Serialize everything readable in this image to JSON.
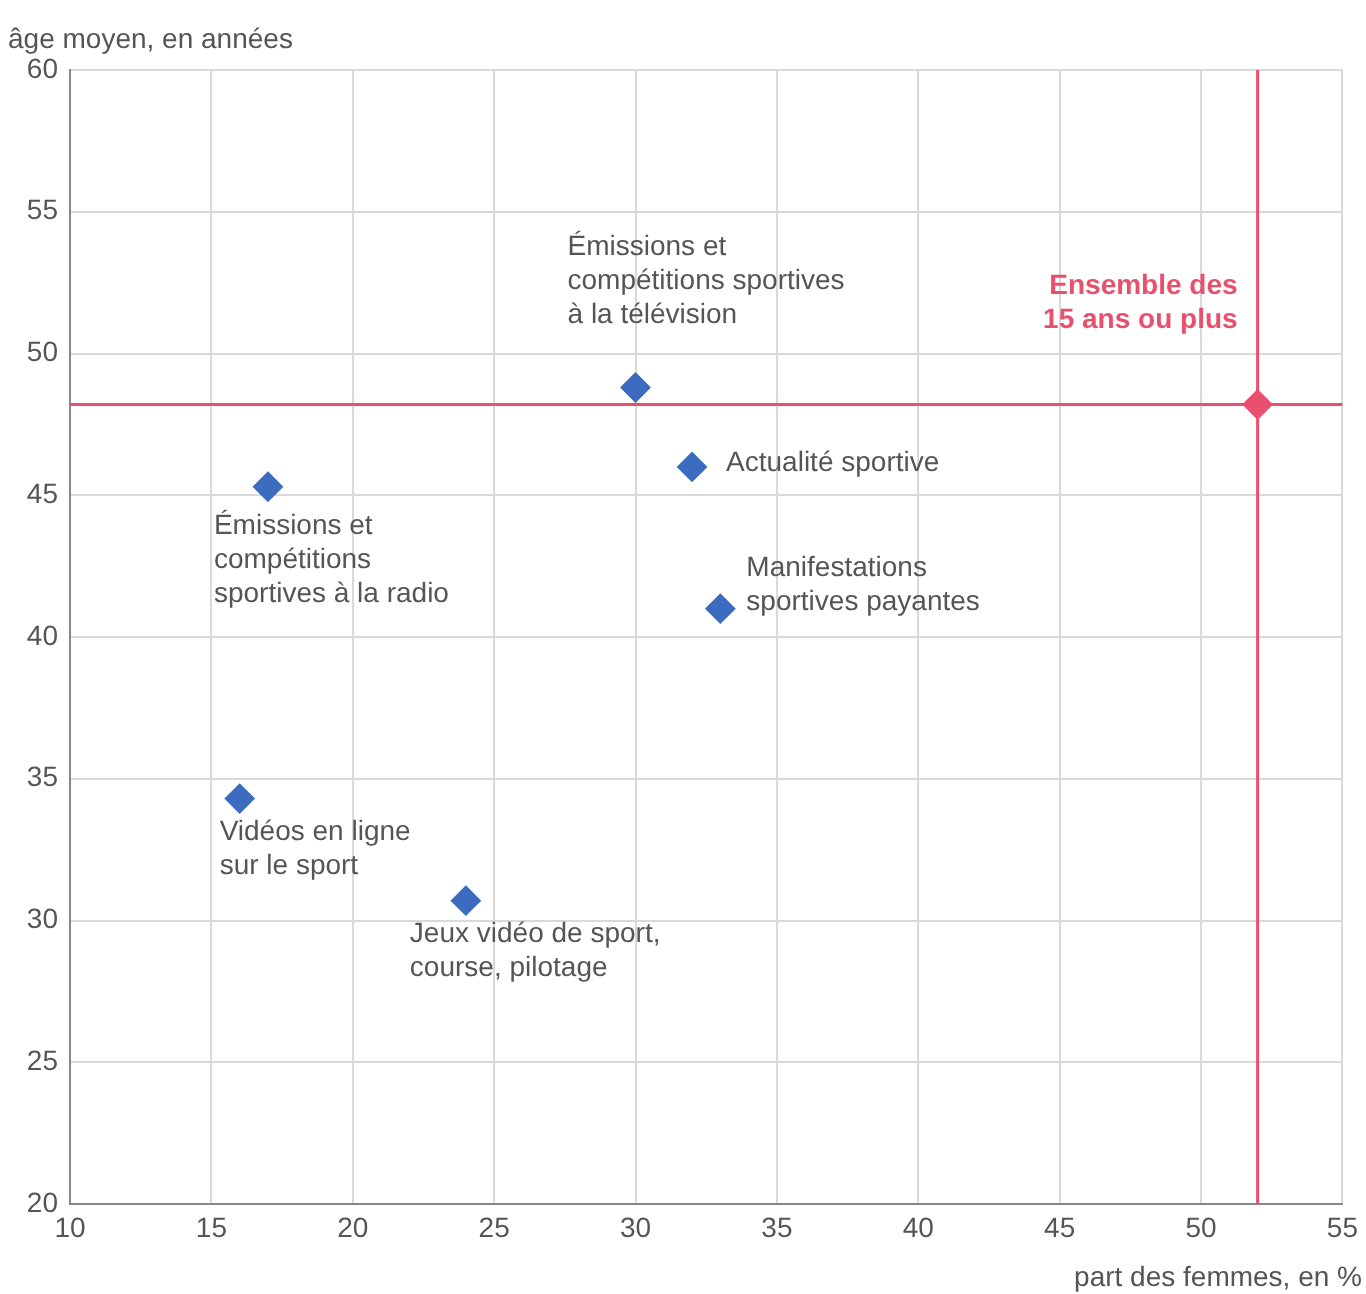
{
  "chart_data": {
    "type": "scatter",
    "xlabel": "part des femmes, en %",
    "ylabel": "âge moyen, en années",
    "xlim": [
      10,
      55
    ],
    "xticks": [
      10,
      15,
      20,
      25,
      30,
      35,
      40,
      45,
      50,
      55
    ],
    "ylim": [
      20,
      60
    ],
    "yticks": [
      20,
      25,
      30,
      35,
      40,
      45,
      50,
      55,
      60
    ],
    "grid": true,
    "marker": "diamond",
    "series": [
      {
        "color": "#3b6cbf",
        "x": [
          30,
          32,
          17,
          33,
          16,
          24
        ],
        "values": [
          48.8,
          46.0,
          45.3,
          41.0,
          34.3,
          30.7
        ]
      },
      {
        "name": "Ensemble des\n15 ans ou plus",
        "color": "#e8506e",
        "x": [
          52
        ],
        "values": [
          48.2
        ]
      }
    ],
    "ref_lines": [
      {
        "axis": "x",
        "value": 52,
        "color": "#e8506e"
      },
      {
        "axis": "y",
        "value": 48.2,
        "color": "#e8506e"
      }
    ],
    "annotations": [
      {
        "text": "Émissions et\ncompétitions sportives\nà la télévision",
        "x": 30,
        "y": 48.8
      },
      {
        "text": "Actualité sportive",
        "x": 32,
        "y": 46.0
      },
      {
        "text": "Émissions et\ncompétitions\nsportives à la radio",
        "x": 17,
        "y": 45.3
      },
      {
        "text": "Manifestations\nsportives payantes",
        "x": 33,
        "y": 41.0
      },
      {
        "text": "Vidéos en ligne\nsur le sport",
        "x": 16,
        "y": 34.3
      },
      {
        "text": "Jeux vidéo de sport,\ncourse, pilotage",
        "x": 24,
        "y": 30.7
      }
    ]
  }
}
